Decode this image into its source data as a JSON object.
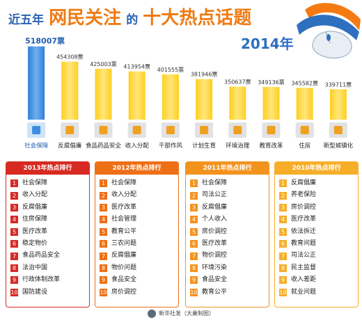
{
  "title": {
    "pre": "近五年",
    "main1": "网民关注",
    "mid": "的",
    "main2": "十大热点话题"
  },
  "colors": {
    "title_blue": "#2a63b4",
    "title_orange": "#f07b12",
    "bar_highlight": "#3d8ee0",
    "bar_default": "#ffcf1f",
    "bar_default_light": "#ffe67a",
    "icon_box": "#e2e2e2",
    "panel_2013": "#d72a22",
    "panel_2012": "#ee6f16",
    "panel_2011": "#f3931e",
    "panel_2010": "#f6ae2a",
    "year_text": "#2d6dc1",
    "footer_text": "#444444"
  },
  "chart_data": {
    "type": "bar",
    "year_label": "2014年",
    "categories": [
      "社会保障",
      "反腐倡廉",
      "食品药品安全",
      "收入分配",
      "干部作风",
      "计划生育",
      "环境治理",
      "教育改革",
      "住房",
      "新型城镇化"
    ],
    "values": [
      518007,
      454308,
      425003,
      413954,
      401555,
      381946,
      350637,
      349136,
      345582,
      339711
    ],
    "value_labels": [
      "518007票",
      "454308票",
      "425003票",
      "413954票",
      "401555票",
      "381946票",
      "350637票",
      "349136票",
      "345582票",
      "339711票"
    ],
    "icons": [
      "umbrella-icon",
      "gavel-icon",
      "food-icon",
      "piggybank-icon",
      "document-icon",
      "family-icon",
      "tree-icon",
      "book-icon",
      "house-icon",
      "building-icon"
    ],
    "highlight_index": 0,
    "ylim": [
      300000,
      520000
    ],
    "grid": false
  },
  "rankings": [
    {
      "year": "2013年热点排行",
      "items": [
        "社会保障",
        "收入分配",
        "反腐倡廉",
        "住房保障",
        "医疗改革",
        "稳定物价",
        "食品药品安全",
        "法治中国",
        "行政体制改革",
        "国防建设"
      ]
    },
    {
      "year": "2012年热点排行",
      "items": [
        "社会保障",
        "收入分配",
        "医疗改革",
        "社会管理",
        "教育公平",
        "三农问题",
        "反腐倡廉",
        "物价问题",
        "食品安全",
        "房价调控"
      ]
    },
    {
      "year": "2011年热点排行",
      "items": [
        "社会保障",
        "司法公正",
        "反腐倡廉",
        "个人收入",
        "房价调控",
        "医疗改革",
        "物价调控",
        "环境污染",
        "食品安全",
        "教育公平"
      ]
    },
    {
      "year": "2010年热点排行",
      "items": [
        "反腐倡廉",
        "养老保险",
        "房价调控",
        "医疗改革",
        "依法拆迁",
        "教育问题",
        "司法公正",
        "民主监督",
        "收入差距",
        "就业问题"
      ]
    }
  ],
  "footer": {
    "credit": "新华社发（大巢制图）"
  }
}
